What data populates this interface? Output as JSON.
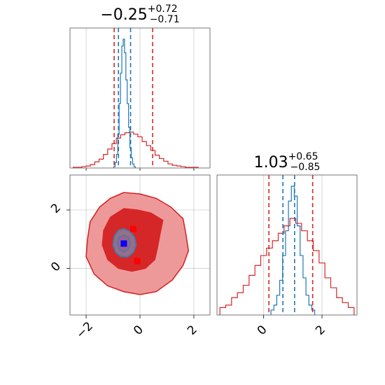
{
  "chart_data": {
    "type": "corner",
    "parameters": [
      {
        "title_value": "−0.25",
        "title_plus": "+0.72",
        "title_minus": "−0.71",
        "range": [
          -2.6,
          2.6
        ],
        "ticks": [
          -2,
          0,
          2
        ],
        "tick_labels": [
          "−2",
          "0",
          "2"
        ],
        "quantile_lines": {
          "red": [
            -0.96,
            0.47
          ],
          "blue": [
            -0.8,
            -0.35
          ]
        }
      },
      {
        "title_value": "1.03",
        "title_plus": "+0.65",
        "title_minus": "−0.85",
        "range": [
          -1.6,
          3.2
        ],
        "ticks": [
          -2,
          0,
          2
        ],
        "tick_labels": [
          "−2",
          "0",
          "2"
        ],
        "quantile_lines": {
          "red": [
            0.18,
            1.68
          ],
          "blue": [
            0.66,
            1.06
          ]
        }
      }
    ],
    "series": [
      {
        "color": "#d62728",
        "hist_x": [
          -2.4,
          -2.24,
          -2.08,
          -1.92,
          -1.76,
          -1.6,
          -1.44,
          -1.28,
          -1.12,
          -0.96,
          -0.8,
          -0.64,
          -0.48,
          -0.32,
          -0.16,
          0.0,
          0.16,
          0.32,
          0.48,
          0.64,
          0.8,
          0.96,
          1.12,
          1.28,
          1.44,
          1.6,
          1.76,
          1.92,
          2.08
        ],
        "hist_x_counts": [
          1,
          1,
          2,
          3,
          5,
          9,
          13,
          20,
          28,
          36,
          44,
          49,
          52,
          53,
          50,
          46,
          39,
          33,
          26,
          19,
          14,
          10,
          6,
          4,
          3,
          2,
          1,
          1,
          1
        ],
        "hist_y": [
          -1.4,
          -1.2,
          -1.0,
          -0.8,
          -0.6,
          -0.4,
          -0.2,
          0.0,
          0.2,
          0.4,
          0.6,
          0.8,
          1.0,
          1.2,
          1.4,
          1.6,
          1.8,
          2.0,
          2.2,
          2.4,
          2.6,
          2.8,
          3.0
        ],
        "hist_y_counts": [
          3,
          4,
          7,
          9,
          12,
          16,
          20,
          24,
          27,
          30,
          33,
          36,
          39,
          37,
          34,
          30,
          26,
          21,
          15,
          11,
          7,
          5,
          3
        ],
        "contours": {
          "outer": [
            [
              -0.6,
              2.6
            ],
            [
              0.0,
              2.55
            ],
            [
              0.6,
              2.4
            ],
            [
              1.15,
              2.1
            ],
            [
              1.6,
              1.7
            ],
            [
              1.7,
              1.2
            ],
            [
              1.8,
              0.6
            ],
            [
              1.6,
              0.1
            ],
            [
              1.2,
              -0.4
            ],
            [
              0.6,
              -0.8
            ],
            [
              0.0,
              -0.9
            ],
            [
              -0.6,
              -0.8
            ],
            [
              -1.2,
              -0.6
            ],
            [
              -1.7,
              -0.2
            ],
            [
              -2.0,
              0.4
            ],
            [
              -1.95,
              1.0
            ],
            [
              -1.85,
              1.6
            ],
            [
              -1.5,
              2.1
            ],
            [
              -1.1,
              2.4
            ]
          ],
          "inner": [
            [
              -0.6,
              2.05
            ],
            [
              -0.1,
              2.0
            ],
            [
              0.4,
              1.9
            ],
            [
              0.85,
              1.65
            ],
            [
              0.75,
              1.2
            ],
            [
              0.65,
              0.7
            ],
            [
              0.55,
              0.3
            ],
            [
              0.2,
              0.0
            ],
            [
              -0.3,
              -0.1
            ],
            [
              -0.8,
              0.0
            ],
            [
              -1.2,
              0.3
            ],
            [
              -1.4,
              0.8
            ],
            [
              -1.35,
              1.3
            ],
            [
              -1.1,
              1.75
            ]
          ]
        },
        "markers": [
          [
            -0.25,
            1.35
          ],
          [
            -0.1,
            0.25
          ]
        ]
      },
      {
        "color": "#1f77b4",
        "hist_x": [
          -0.95,
          -0.9,
          -0.85,
          -0.8,
          -0.75,
          -0.7,
          -0.65,
          -0.6,
          -0.55,
          -0.5,
          -0.45,
          -0.4,
          -0.35,
          -0.3,
          -0.25,
          -0.2
        ],
        "hist_x_counts": [
          2,
          8,
          20,
          50,
          95,
          140,
          180,
          190,
          170,
          130,
          95,
          60,
          30,
          15,
          6,
          2
        ],
        "hist_y": [
          0.3,
          0.4,
          0.5,
          0.6,
          0.7,
          0.8,
          0.9,
          1.0,
          1.1,
          1.2,
          1.3,
          1.4,
          1.5,
          1.6,
          1.7
        ],
        "hist_y_counts": [
          2,
          4,
          8,
          14,
          24,
          34,
          46,
          52,
          48,
          36,
          24,
          15,
          8,
          4,
          2
        ],
        "contours": {
          "outer": [
            [
              -0.6,
              1.35
            ],
            [
              -0.35,
              1.25
            ],
            [
              -0.2,
              1.05
            ],
            [
              -0.15,
              0.8
            ],
            [
              -0.25,
              0.55
            ],
            [
              -0.45,
              0.4
            ],
            [
              -0.7,
              0.4
            ],
            [
              -0.9,
              0.55
            ],
            [
              -1.0,
              0.8
            ],
            [
              -0.95,
              1.1
            ],
            [
              -0.8,
              1.3
            ]
          ],
          "inner": [
            [
              -0.6,
              1.15
            ],
            [
              -0.42,
              1.05
            ],
            [
              -0.35,
              0.85
            ],
            [
              -0.42,
              0.65
            ],
            [
              -0.6,
              0.56
            ],
            [
              -0.78,
              0.65
            ],
            [
              -0.85,
              0.85
            ],
            [
              -0.78,
              1.05
            ]
          ]
        },
        "markers": [
          [
            -0.6,
            0.85
          ]
        ]
      }
    ]
  }
}
